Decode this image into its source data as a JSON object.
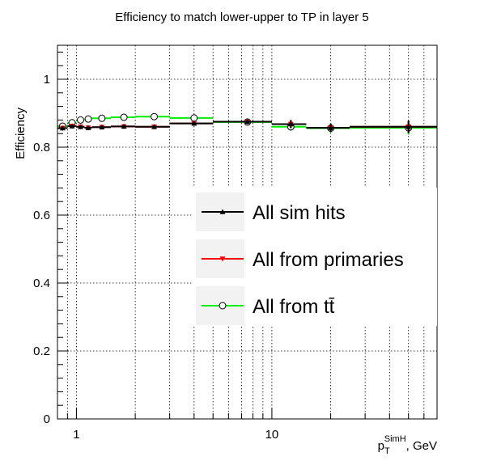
{
  "chart_data": {
    "type": "line",
    "title": "Efficiency to match lower-upper to TP in layer 5",
    "xlabel": {
      "main": "p",
      "sub": "T",
      "sup": "SimH",
      "suffix": ", GeV"
    },
    "ylabel": "Efficiency",
    "xscale": "log",
    "xlim": [
      0.8,
      70
    ],
    "ylim": [
      0,
      1.1
    ],
    "grid": true,
    "yticks": [
      0,
      0.2,
      0.4,
      0.6,
      0.8,
      1
    ],
    "ytick_labels": [
      "0",
      "0.2",
      "0.4",
      "0.6",
      "0.8",
      "1"
    ],
    "xticks": [
      1,
      10
    ],
    "xtick_labels": [
      "1",
      "10"
    ],
    "legend_position": "right-center",
    "series": [
      {
        "name": "All sim hits",
        "color": "#000000",
        "marker": "triangle-up",
        "points": [
          {
            "x": 0.85,
            "y": 0.856,
            "xlo": 0.8,
            "xhi": 0.9,
            "err": 0.005
          },
          {
            "x": 0.95,
            "y": 0.862,
            "xlo": 0.9,
            "xhi": 1.0,
            "err": 0.005
          },
          {
            "x": 1.05,
            "y": 0.86,
            "xlo": 1.0,
            "xhi": 1.1,
            "err": 0.005
          },
          {
            "x": 1.15,
            "y": 0.857,
            "xlo": 1.1,
            "xhi": 1.2,
            "err": 0.005
          },
          {
            "x": 1.35,
            "y": 0.859,
            "xlo": 1.2,
            "xhi": 1.5,
            "err": 0.005
          },
          {
            "x": 1.75,
            "y": 0.861,
            "xlo": 1.5,
            "xhi": 2.0,
            "err": 0.005
          },
          {
            "x": 2.5,
            "y": 0.86,
            "xlo": 2.0,
            "xhi": 3.0,
            "err": 0.005
          },
          {
            "x": 4.0,
            "y": 0.87,
            "xlo": 3.0,
            "xhi": 5.0,
            "err": 0.006
          },
          {
            "x": 7.5,
            "y": 0.875,
            "xlo": 5.0,
            "xhi": 10.0,
            "err": 0.006
          },
          {
            "x": 12.5,
            "y": 0.868,
            "xlo": 10.0,
            "xhi": 15.0,
            "err": 0.012
          },
          {
            "x": 20,
            "y": 0.857,
            "xlo": 15.0,
            "xhi": 25.0,
            "err": 0.012
          },
          {
            "x": 50,
            "y": 0.86,
            "xlo": 25.0,
            "xhi": 70.0,
            "err": 0.018
          }
        ]
      },
      {
        "name": "All from primaries",
        "color": "#ff0000",
        "marker": "triangle-down",
        "points": [
          {
            "x": 0.85,
            "y": 0.856,
            "xlo": 0.8,
            "xhi": 0.9,
            "err": 0.005
          },
          {
            "x": 0.95,
            "y": 0.862,
            "xlo": 0.9,
            "xhi": 1.0,
            "err": 0.005
          },
          {
            "x": 1.05,
            "y": 0.86,
            "xlo": 1.0,
            "xhi": 1.1,
            "err": 0.005
          },
          {
            "x": 1.15,
            "y": 0.857,
            "xlo": 1.1,
            "xhi": 1.2,
            "err": 0.005
          },
          {
            "x": 1.35,
            "y": 0.859,
            "xlo": 1.2,
            "xhi": 1.5,
            "err": 0.005
          },
          {
            "x": 1.75,
            "y": 0.861,
            "xlo": 1.5,
            "xhi": 2.0,
            "err": 0.005
          },
          {
            "x": 2.5,
            "y": 0.86,
            "xlo": 2.0,
            "xhi": 3.0,
            "err": 0.005
          },
          {
            "x": 4.0,
            "y": 0.87,
            "xlo": 3.0,
            "xhi": 5.0,
            "err": 0.006
          },
          {
            "x": 7.5,
            "y": 0.875,
            "xlo": 5.0,
            "xhi": 10.0,
            "err": 0.006
          },
          {
            "x": 12.5,
            "y": 0.868,
            "xlo": 10.0,
            "xhi": 15.0,
            "err": 0.012
          },
          {
            "x": 20,
            "y": 0.857,
            "xlo": 15.0,
            "xhi": 25.0,
            "err": 0.012
          },
          {
            "x": 50,
            "y": 0.86,
            "xlo": 25.0,
            "xhi": 70.0,
            "err": 0.018
          }
        ]
      },
      {
        "name": "All from tt̄",
        "color": "#00ee00",
        "marker": "circle-open",
        "points": [
          {
            "x": 0.85,
            "y": 0.862,
            "xlo": 0.8,
            "xhi": 0.9,
            "err": 0.008
          },
          {
            "x": 0.95,
            "y": 0.872,
            "xlo": 0.9,
            "xhi": 1.0,
            "err": 0.008
          },
          {
            "x": 1.05,
            "y": 0.88,
            "xlo": 1.0,
            "xhi": 1.1,
            "err": 0.008
          },
          {
            "x": 1.15,
            "y": 0.883,
            "xlo": 1.1,
            "xhi": 1.2,
            "err": 0.008
          },
          {
            "x": 1.35,
            "y": 0.885,
            "xlo": 1.2,
            "xhi": 1.5,
            "err": 0.007
          },
          {
            "x": 1.75,
            "y": 0.888,
            "xlo": 1.5,
            "xhi": 2.0,
            "err": 0.007
          },
          {
            "x": 2.5,
            "y": 0.89,
            "xlo": 2.0,
            "xhi": 3.0,
            "err": 0.007
          },
          {
            "x": 4.0,
            "y": 0.886,
            "xlo": 3.0,
            "xhi": 5.0,
            "err": 0.007
          },
          {
            "x": 7.5,
            "y": 0.874,
            "xlo": 5.0,
            "xhi": 10.0,
            "err": 0.007
          },
          {
            "x": 12.5,
            "y": 0.86,
            "xlo": 10.0,
            "xhi": 15.0,
            "err": 0.012
          },
          {
            "x": 20,
            "y": 0.856,
            "xlo": 15.0,
            "xhi": 25.0,
            "err": 0.014
          },
          {
            "x": 50,
            "y": 0.857,
            "xlo": 25.0,
            "xhi": 70.0,
            "err": 0.02
          }
        ]
      }
    ]
  }
}
